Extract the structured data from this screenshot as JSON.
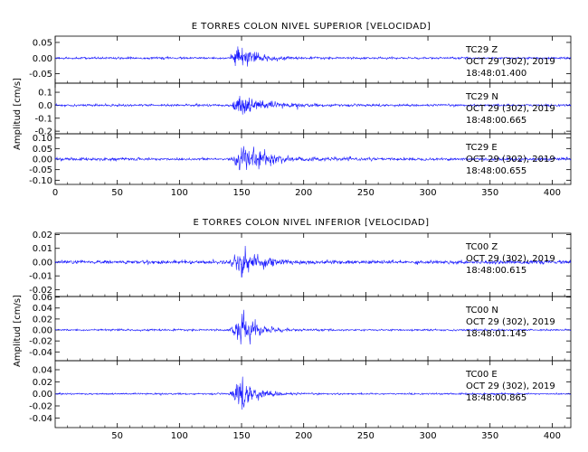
{
  "chart_data": [
    {
      "type": "line",
      "title": "E TORRES COLON NIVEL SUPERIOR [VELOCIDAD]",
      "ylabel": "Amplitud [cm/s]",
      "xlabel": "",
      "xlim": [
        0,
        415
      ],
      "x_ticks": [
        0,
        50,
        100,
        150,
        200,
        250,
        300,
        350,
        400
      ],
      "x_tick_labels": [
        "0",
        "50",
        "100",
        "150",
        "200",
        "250",
        "300",
        "350",
        "400"
      ],
      "line_color": "#1a1aff",
      "grid": false,
      "traces": [
        {
          "station": "TC29",
          "component": "Z",
          "date": "OCT 29 (302), 2019",
          "time": "18:48:01.400",
          "ylim": [
            -0.08,
            0.07
          ],
          "y_ticks": [
            0.05,
            0.0,
            -0.05
          ],
          "y_tick_labels": [
            "0.05",
            "0.00",
            "-0.05"
          ],
          "event_onset_s": 140,
          "peak_time_s": 146,
          "peak_amplitude": 0.065,
          "noise_amplitude": 0.003,
          "decay_s": 14
        },
        {
          "station": "TC29",
          "component": "N",
          "date": "OCT 29 (302), 2019",
          "time": "18:48:00.665",
          "ylim": [
            -0.22,
            0.17
          ],
          "y_ticks": [
            0.1,
            0.0,
            -0.1,
            -0.2
          ],
          "y_tick_labels": [
            "0.1",
            "0.0",
            "-0.1",
            "-0.2"
          ],
          "event_onset_s": 140,
          "peak_time_s": 148,
          "peak_amplitude": 0.15,
          "noise_amplitude": 0.008,
          "decay_s": 18
        },
        {
          "station": "TC29",
          "component": "E",
          "date": "OCT 29 (302), 2019",
          "time": "18:48:00.655",
          "ylim": [
            -0.12,
            0.12
          ],
          "y_ticks": [
            0.1,
            0.05,
            0.0,
            -0.05,
            -0.1
          ],
          "y_tick_labels": [
            "0.10",
            "0.05",
            "0.00",
            "-0.05",
            "-0.10"
          ],
          "event_onset_s": 140,
          "peak_time_s": 150,
          "peak_amplitude": 0.11,
          "noise_amplitude": 0.006,
          "decay_s": 20
        }
      ]
    },
    {
      "type": "line",
      "title": "E TORRES COLON NIVEL INFERIOR [VELOCIDAD]",
      "ylabel": "Amplitud [cm/s]",
      "xlabel": "",
      "xlim": [
        0,
        415
      ],
      "x_ticks": [
        50,
        100,
        150,
        200,
        250,
        300,
        350,
        400
      ],
      "x_tick_labels": [
        "50",
        "100",
        "150",
        "200",
        "250",
        "300",
        "350",
        "400"
      ],
      "line_color": "#1a1aff",
      "grid": false,
      "traces": [
        {
          "station": "TC00",
          "component": "Z",
          "date": "OCT 29 (302), 2019",
          "time": "18:48:00.615",
          "ylim": [
            -0.025,
            0.021
          ],
          "y_ticks": [
            0.02,
            0.01,
            0.0,
            -0.01,
            -0.02
          ],
          "y_tick_labels": [
            "0.02",
            "0.01",
            "0.00",
            "-0.01",
            "-0.02"
          ],
          "event_onset_s": 140,
          "peak_time_s": 150,
          "peak_amplitude": 0.02,
          "noise_amplitude": 0.0012,
          "decay_s": 14
        },
        {
          "station": "TC00",
          "component": "N",
          "date": "OCT 29 (302), 2019",
          "time": "18:48:01.145",
          "ylim": [
            -0.056,
            0.061
          ],
          "y_ticks": [
            0.06,
            0.04,
            0.02,
            0.0,
            -0.02,
            -0.04
          ],
          "y_tick_labels": [
            "0.06",
            "0.04",
            "0.02",
            "0.00",
            "-0.02",
            "-0.04"
          ],
          "event_onset_s": 140,
          "peak_time_s": 150,
          "peak_amplitude": 0.055,
          "noise_amplitude": 0.0015,
          "decay_s": 12
        },
        {
          "station": "TC00",
          "component": "E",
          "date": "OCT 29 (302), 2019",
          "time": "18:48:00.865",
          "ylim": [
            -0.056,
            0.055
          ],
          "y_ticks": [
            0.04,
            0.02,
            0.0,
            -0.02,
            -0.04
          ],
          "y_tick_labels": [
            "0.04",
            "0.02",
            "0.00",
            "-0.02",
            "-0.04"
          ],
          "event_onset_s": 140,
          "peak_time_s": 150,
          "peak_amplitude": 0.045,
          "noise_amplitude": 0.0012,
          "decay_s": 12
        }
      ]
    }
  ]
}
